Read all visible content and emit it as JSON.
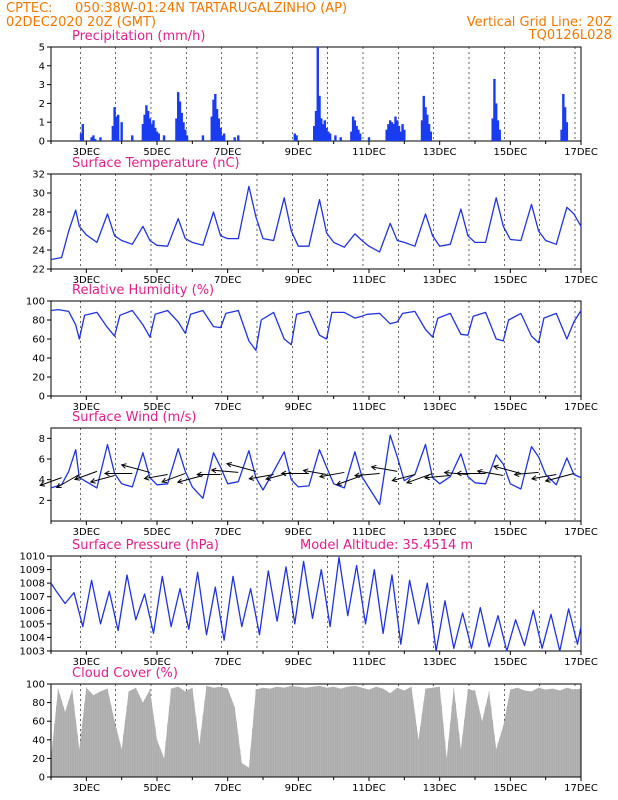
{
  "header": {
    "line1_left": "CPTEC:",
    "line1_mid": "050:38W-01:24N  TARTARUGALZINHO (AP)",
    "line2_left": "02DEC2020 20Z (GMT)",
    "line2_right": "Vertical Grid Line: 20Z",
    "line3_right": "TQ0126L028"
  },
  "model_altitude_label": "Model Altitude: 35.4514 m",
  "colors": {
    "header": "#f07800",
    "title": "#e0208a",
    "line": "#2233dd",
    "bars": "#1a3cf0",
    "cloud": "#b4b4b4",
    "arrows": "#000000"
  },
  "chart_data": [
    {
      "id": "precip",
      "type": "bar",
      "title": "Precipitation (mm/h)",
      "xticks": [
        "3DEC",
        "5DEC",
        "7DEC",
        "9DEC",
        "11DEC",
        "13DEC",
        "15DEC",
        "17DEC"
      ],
      "yticks": [
        "0",
        "1",
        "2",
        "3",
        "4",
        "5"
      ],
      "ylim": [
        0,
        5
      ],
      "x_days": [
        2.85,
        2.9,
        3.15,
        3.2,
        3.25,
        3.4,
        3.75,
        3.8,
        3.85,
        3.9,
        4.0,
        4.3,
        4.6,
        4.65,
        4.7,
        4.75,
        4.8,
        4.85,
        4.9,
        4.95,
        5.0,
        5.05,
        5.2,
        5.55,
        5.6,
        5.65,
        5.7,
        5.75,
        5.8,
        5.85,
        6.3,
        6.55,
        6.6,
        6.65,
        6.7,
        6.75,
        6.8,
        6.85,
        6.9,
        7.2,
        7.3,
        8.9,
        8.95,
        9.45,
        9.5,
        9.55,
        9.6,
        9.65,
        9.7,
        9.75,
        9.8,
        9.85,
        9.9,
        10.05,
        10.2,
        10.5,
        10.55,
        10.6,
        10.65,
        10.7,
        10.75,
        11.0,
        11.5,
        11.55,
        11.6,
        11.65,
        11.7,
        11.75,
        11.8,
        11.85,
        11.9,
        11.95,
        12.0,
        12.5,
        12.55,
        12.6,
        12.65,
        12.7,
        12.75,
        14.5,
        14.55,
        14.6,
        14.65,
        14.7,
        16.45,
        16.5,
        16.55,
        16.6
      ],
      "values": [
        0.4,
        0.9,
        0.2,
        0.3,
        0.1,
        0.2,
        0.8,
        1.8,
        1.3,
        1.4,
        1.0,
        0.3,
        0.9,
        1.4,
        1.9,
        1.6,
        1.2,
        0.9,
        1.1,
        0.7,
        0.5,
        0.4,
        0.3,
        1.2,
        2.6,
        2.1,
        1.5,
        1.0,
        0.6,
        0.3,
        0.3,
        1.3,
        2.2,
        2.5,
        1.7,
        1.2,
        0.7,
        0.3,
        0.4,
        0.2,
        0.3,
        0.4,
        0.3,
        0.8,
        1.6,
        5.0,
        2.4,
        1.2,
        0.9,
        1.1,
        0.7,
        0.5,
        0.4,
        0.3,
        0.2,
        0.5,
        1.3,
        1.1,
        0.8,
        0.6,
        0.4,
        0.2,
        0.6,
        0.9,
        1.1,
        1.0,
        0.9,
        1.3,
        1.1,
        0.8,
        0.5,
        0.9,
        0.6,
        1.1,
        2.4,
        1.8,
        1.4,
        0.9,
        0.5,
        1.2,
        3.3,
        2.0,
        1.1,
        0.6,
        0.6,
        2.5,
        1.8,
        1.0
      ]
    },
    {
      "id": "temp",
      "type": "line",
      "title": "Surface Temperature (nC)",
      "xticks": [
        "3DEC",
        "5DEC",
        "7DEC",
        "9DEC",
        "11DEC",
        "13DEC",
        "15DEC",
        "17DEC"
      ],
      "yticks": [
        "22",
        "24",
        "26",
        "28",
        "30",
        "32"
      ],
      "ylim": [
        22,
        32
      ],
      "x": [
        2.0,
        2.3,
        2.5,
        2.7,
        2.8,
        3.0,
        3.3,
        3.6,
        3.8,
        4.0,
        4.3,
        4.6,
        4.8,
        5.0,
        5.3,
        5.6,
        5.8,
        6.0,
        6.3,
        6.6,
        6.8,
        7.0,
        7.3,
        7.6,
        7.8,
        8.0,
        8.3,
        8.6,
        8.8,
        9.0,
        9.3,
        9.6,
        9.8,
        10.0,
        10.3,
        10.6,
        10.8,
        11.0,
        11.3,
        11.6,
        11.8,
        12.0,
        12.3,
        12.6,
        12.8,
        13.0,
        13.3,
        13.6,
        13.8,
        14.0,
        14.3,
        14.6,
        14.8,
        15.0,
        15.3,
        15.6,
        15.8,
        16.0,
        16.3,
        16.6,
        16.8,
        17.0
      ],
      "values": [
        23.0,
        23.2,
        26.0,
        28.2,
        26.5,
        25.6,
        24.8,
        27.8,
        25.5,
        25.0,
        24.6,
        26.5,
        25.0,
        24.5,
        24.4,
        27.3,
        25.2,
        24.8,
        24.5,
        28.0,
        25.5,
        25.2,
        25.2,
        30.7,
        27.5,
        25.2,
        25.0,
        29.5,
        26.0,
        24.4,
        24.4,
        29.3,
        25.8,
        24.8,
        24.3,
        25.7,
        25.0,
        24.4,
        23.8,
        26.8,
        25.0,
        24.8,
        24.4,
        27.8,
        25.5,
        24.4,
        24.6,
        28.3,
        25.5,
        24.8,
        24.8,
        29.5,
        26.5,
        25.1,
        25.0,
        28.8,
        26.0,
        25.0,
        24.6,
        28.5,
        27.8,
        26.5
      ]
    },
    {
      "id": "rh",
      "type": "line",
      "title": "Relative Humidity (%)",
      "xticks": [
        "3DEC",
        "5DEC",
        "7DEC",
        "9DEC",
        "11DEC",
        "13DEC",
        "15DEC",
        "17DEC"
      ],
      "yticks": [
        "0",
        "20",
        "40",
        "60",
        "80",
        "100"
      ],
      "ylim": [
        0,
        100
      ],
      "x": [
        2.0,
        2.2,
        2.5,
        2.7,
        2.8,
        2.95,
        3.3,
        3.6,
        3.8,
        3.95,
        4.3,
        4.6,
        4.8,
        4.95,
        5.3,
        5.6,
        5.8,
        5.95,
        6.3,
        6.6,
        6.8,
        6.95,
        7.3,
        7.6,
        7.8,
        7.95,
        8.3,
        8.6,
        8.8,
        8.95,
        9.3,
        9.6,
        9.8,
        9.95,
        10.3,
        10.6,
        10.8,
        10.95,
        11.3,
        11.6,
        11.8,
        11.95,
        12.3,
        12.6,
        12.8,
        12.95,
        13.3,
        13.6,
        13.8,
        13.95,
        14.3,
        14.6,
        14.8,
        14.95,
        15.3,
        15.6,
        15.8,
        15.95,
        16.3,
        16.6,
        16.8,
        17.0
      ],
      "values": [
        90,
        91,
        89,
        75,
        60,
        85,
        88,
        72,
        63,
        85,
        90,
        75,
        62,
        86,
        90,
        78,
        66,
        86,
        90,
        73,
        72,
        87,
        90,
        58,
        48,
        80,
        88,
        60,
        54,
        86,
        89,
        64,
        60,
        88,
        88,
        82,
        84,
        86,
        87,
        76,
        78,
        87,
        89,
        70,
        62,
        82,
        87,
        65,
        64,
        84,
        88,
        60,
        58,
        80,
        87,
        63,
        56,
        82,
        87,
        60,
        78,
        90
      ]
    },
    {
      "id": "wind",
      "type": "line",
      "title": "Surface Wind (m/s)",
      "xticks": [
        "3DEC",
        "5DEC",
        "7DEC",
        "9DEC",
        "11DEC",
        "13DEC",
        "15DEC",
        "17DEC"
      ],
      "yticks": [
        "2",
        "4",
        "6",
        "8"
      ],
      "ylim": [
        0,
        9
      ],
      "x": [
        2.0,
        2.3,
        2.5,
        2.7,
        2.8,
        3.0,
        3.3,
        3.6,
        3.8,
        4.0,
        4.3,
        4.6,
        4.8,
        5.0,
        5.3,
        5.6,
        5.8,
        6.0,
        6.3,
        6.6,
        6.8,
        7.0,
        7.3,
        7.6,
        7.8,
        8.0,
        8.3,
        8.6,
        8.8,
        9.0,
        9.3,
        9.6,
        9.8,
        10.0,
        10.3,
        10.6,
        10.8,
        11.0,
        11.3,
        11.6,
        11.8,
        12.0,
        12.3,
        12.6,
        12.8,
        13.0,
        13.3,
        13.6,
        13.8,
        14.0,
        14.3,
        14.6,
        14.8,
        15.0,
        15.3,
        15.6,
        15.8,
        16.0,
        16.3,
        16.6,
        16.8,
        17.0
      ],
      "values": [
        3.2,
        3.5,
        4.8,
        6.9,
        4.2,
        3.8,
        3.2,
        7.4,
        4.6,
        3.6,
        3.3,
        6.6,
        4.2,
        3.5,
        3.6,
        7.0,
        4.8,
        3.3,
        2.2,
        6.6,
        5.2,
        3.6,
        3.8,
        6.8,
        4.2,
        3.0,
        4.8,
        6.7,
        4.0,
        3.3,
        3.4,
        6.9,
        5.2,
        3.6,
        3.2,
        6.7,
        4.3,
        3.2,
        1.6,
        8.3,
        6.2,
        3.9,
        4.5,
        7.4,
        4.2,
        3.6,
        4.3,
        6.5,
        4.3,
        3.7,
        3.6,
        6.4,
        5.5,
        3.6,
        3.1,
        7.2,
        6.2,
        4.5,
        3.5,
        6.1,
        4.5,
        4.2
      ],
      "arrows_x": [
        2.3,
        2.8,
        3.3,
        3.8,
        4.3,
        4.8,
        5.3,
        5.8,
        6.3,
        6.8,
        7.3,
        7.8,
        8.3,
        8.8,
        9.3,
        9.8,
        10.3,
        10.8,
        11.3,
        11.8,
        12.3,
        12.8,
        13.3,
        13.8,
        14.3,
        14.8,
        15.3,
        15.8,
        16.3,
        16.8
      ],
      "arrows_y": [
        4.2,
        4.5,
        4.8,
        4.4,
        4.6,
        4.7,
        4.5,
        4.6,
        4.4,
        4.5,
        4.7,
        4.8,
        4.5,
        4.7,
        4.6,
        4.5,
        4.7,
        4.4,
        4.6,
        4.8,
        4.5,
        4.6,
        4.4,
        4.5,
        4.6,
        4.4,
        4.6,
        4.7,
        4.5,
        4.6
      ],
      "arrows_dir_deg": [
        200,
        210,
        200,
        195,
        180,
        165,
        190,
        200,
        195,
        180,
        175,
        165,
        190,
        195,
        180,
        170,
        190,
        200,
        185,
        170,
        195,
        200,
        185,
        175,
        180,
        170,
        165,
        185,
        190,
        195
      ],
      "arrows_speed": [
        3.5,
        4.0,
        3.6,
        3.8,
        4.2,
        4.5,
        3.6,
        3.8,
        4.0,
        3.6,
        4.1,
        4.6,
        3.8,
        4.0,
        4.2,
        3.6,
        3.8,
        4.1,
        3.8,
        4.0,
        3.6,
        4.2,
        3.9,
        3.6,
        4.4,
        4.0,
        4.3,
        3.7,
        3.8,
        4.5
      ]
    },
    {
      "id": "pressure",
      "type": "line",
      "title": "Surface Pressure (hPa)",
      "xticks": [
        "3DEC",
        "5DEC",
        "7DEC",
        "9DEC",
        "11DEC",
        "13DEC",
        "15DEC",
        "17DEC"
      ],
      "yticks": [
        "1003",
        "1004",
        "1005",
        "1006",
        "1007",
        "1008",
        "1009",
        "1010"
      ],
      "ylim": [
        1003,
        1010
      ],
      "x": [
        2.0,
        2.15,
        2.4,
        2.65,
        2.9,
        3.15,
        3.4,
        3.65,
        3.9,
        4.15,
        4.4,
        4.65,
        4.9,
        5.15,
        5.4,
        5.65,
        5.9,
        6.15,
        6.4,
        6.65,
        6.9,
        7.15,
        7.4,
        7.65,
        7.9,
        8.15,
        8.4,
        8.65,
        8.9,
        9.15,
        9.4,
        9.65,
        9.9,
        10.15,
        10.4,
        10.65,
        10.9,
        11.15,
        11.4,
        11.65,
        11.9,
        12.15,
        12.4,
        12.65,
        12.9,
        13.15,
        13.4,
        13.65,
        13.9,
        14.15,
        14.4,
        14.65,
        14.9,
        15.15,
        15.4,
        15.65,
        15.9,
        16.15,
        16.4,
        16.65,
        16.9,
        17.0
      ],
      "values": [
        1008.0,
        1007.4,
        1006.5,
        1007.3,
        1004.8,
        1008.2,
        1005.0,
        1007.4,
        1004.5,
        1008.6,
        1005.3,
        1007.2,
        1004.3,
        1008.5,
        1004.8,
        1007.6,
        1004.6,
        1008.8,
        1004.2,
        1007.7,
        1003.8,
        1008.5,
        1004.8,
        1007.6,
        1004.2,
        1008.9,
        1005.2,
        1009.2,
        1005.0,
        1009.6,
        1005.4,
        1009.0,
        1004.8,
        1009.9,
        1005.6,
        1009.3,
        1005.0,
        1009.0,
        1004.3,
        1008.6,
        1003.5,
        1008.2,
        1005.0,
        1008.0,
        1003.0,
        1006.7,
        1003.2,
        1005.8,
        1003.2,
        1006.2,
        1003.3,
        1005.6,
        1003.0,
        1005.3,
        1003.4,
        1006.0,
        1003.2,
        1005.7,
        1003.0,
        1006.1,
        1003.5,
        1004.8
      ]
    },
    {
      "id": "cloud",
      "type": "area",
      "title": "Cloud Cover (%)",
      "xticks": [
        "3DEC",
        "5DEC",
        "7DEC",
        "9DEC",
        "11DEC",
        "13DEC",
        "15DEC",
        "17DEC"
      ],
      "yticks": [
        "0",
        "20",
        "40",
        "60",
        "80",
        "100"
      ],
      "ylim": [
        0,
        100
      ],
      "x": [
        2.0,
        2.2,
        2.4,
        2.6,
        2.8,
        3.0,
        3.2,
        3.4,
        3.6,
        3.8,
        4.0,
        4.2,
        4.4,
        4.6,
        4.8,
        5.0,
        5.2,
        5.4,
        5.6,
        5.8,
        6.0,
        6.2,
        6.4,
        6.6,
        6.8,
        7.0,
        7.2,
        7.4,
        7.6,
        7.8,
        8.0,
        8.2,
        8.4,
        8.6,
        8.8,
        9.0,
        9.2,
        9.4,
        9.6,
        9.8,
        10.0,
        10.2,
        10.4,
        10.6,
        10.8,
        11.0,
        11.2,
        11.4,
        11.6,
        11.8,
        12.0,
        12.2,
        12.4,
        12.6,
        12.8,
        13.0,
        13.2,
        13.4,
        13.6,
        13.8,
        14.0,
        14.2,
        14.4,
        14.6,
        14.8,
        15.0,
        15.2,
        15.4,
        15.6,
        15.8,
        16.0,
        16.2,
        16.4,
        16.6,
        16.8,
        17.0
      ],
      "values": [
        20,
        95,
        70,
        94,
        30,
        96,
        88,
        92,
        95,
        60,
        30,
        92,
        96,
        80,
        94,
        40,
        20,
        95,
        97,
        92,
        96,
        35,
        98,
        96,
        97,
        95,
        75,
        15,
        10,
        94,
        96,
        95,
        97,
        96,
        98,
        97,
        96,
        97,
        98,
        96,
        97,
        95,
        97,
        98,
        96,
        94,
        97,
        95,
        90,
        96,
        93,
        97,
        40,
        95,
        96,
        97,
        20,
        96,
        30,
        94,
        93,
        60,
        92,
        30,
        55,
        94,
        96,
        93,
        92,
        96,
        94,
        95,
        93,
        96,
        94,
        95
      ]
    }
  ]
}
